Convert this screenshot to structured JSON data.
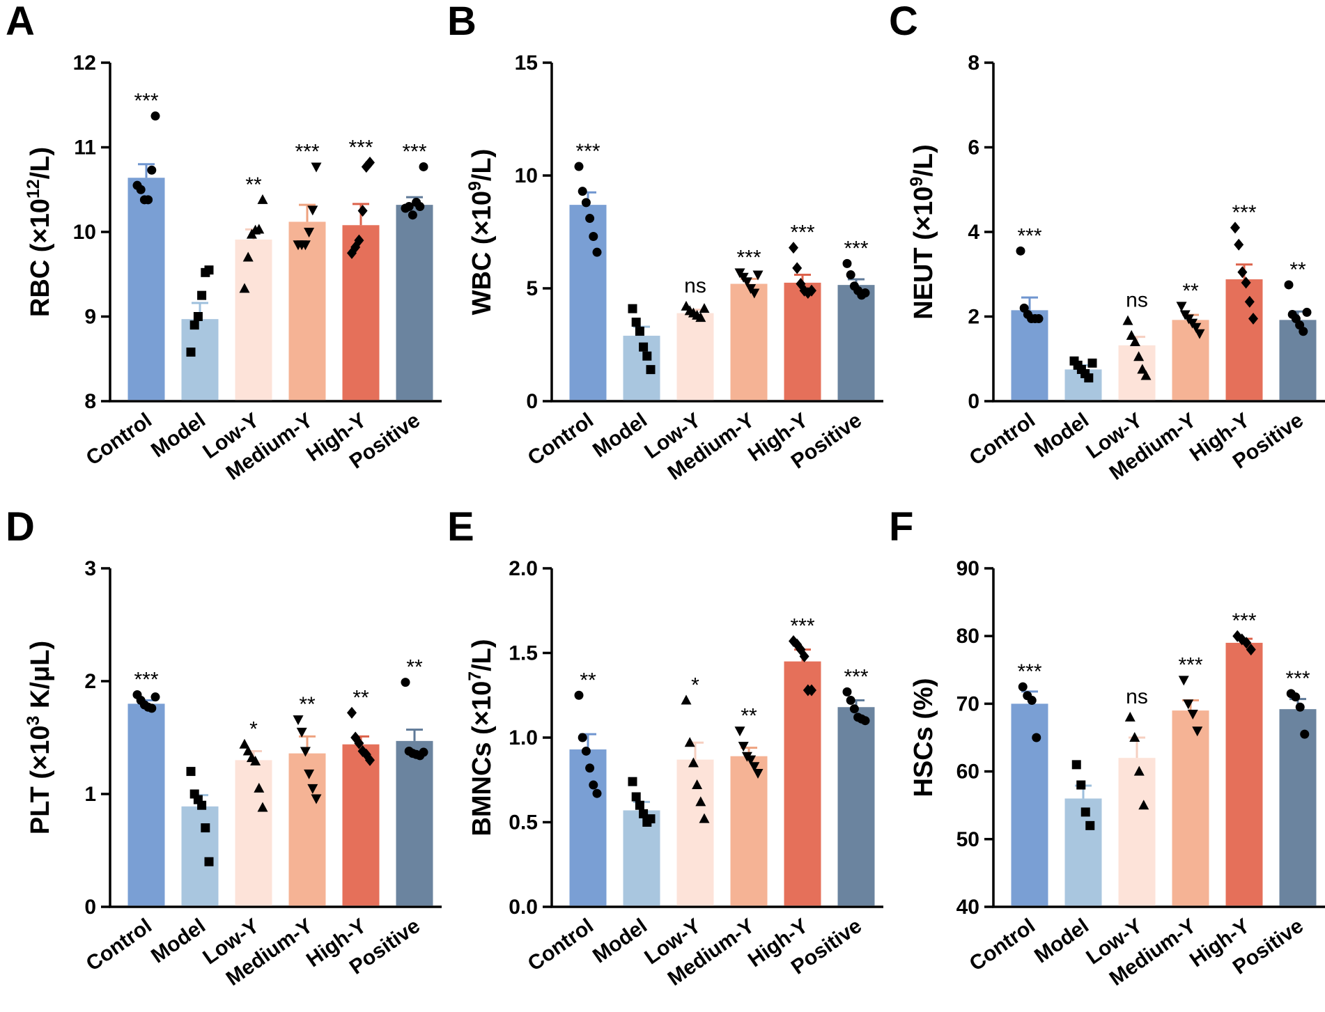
{
  "colors": {
    "Control": "#7a9fd4",
    "Control_err": "#6f95cf",
    "Model": "#a9c6df",
    "Model_err": "#9dbfdc",
    "Low-Y": "#fde3d9",
    "Low-Y_err": "#f6cfc0",
    "Medium-Y": "#f5b395",
    "Medium-Y_err": "#eea27f",
    "High-Y": "#e5705a",
    "High-Y_err": "#dc624b",
    "Positive": "#6b849f",
    "Positive_err": "#5f7a98"
  },
  "chart_data": [
    {
      "id": "A",
      "letter": "A",
      "type": "bar",
      "ylabel_main": "RBC (×10",
      "ylabel_sup": "12",
      "ylabel_tail": "/L)",
      "categories": [
        "Control",
        "Model",
        "Low-Y",
        "Medium-Y",
        "High-Y",
        "Positive"
      ],
      "ylim": [
        8,
        12
      ],
      "yticks": [
        "8",
        "9",
        "10",
        "11",
        "12"
      ],
      "means": [
        10.64,
        8.97,
        9.91,
        10.12,
        10.08,
        10.32
      ],
      "errors": [
        0.16,
        0.19,
        0.12,
        0.2,
        0.25,
        0.09
      ],
      "markers": [
        "circle",
        "square",
        "triangle-up",
        "triangle-down",
        "diamond",
        "circle"
      ],
      "points": [
        [
          10.55,
          10.5,
          10.38,
          10.38,
          10.73,
          11.37
        ],
        [
          8.58,
          8.9,
          9.0,
          9.25,
          9.52,
          9.55
        ],
        [
          9.33,
          9.7,
          9.97,
          10.02,
          10.03,
          10.38
        ],
        [
          9.85,
          9.85,
          9.85,
          10.0,
          10.26,
          10.77
        ],
        [
          9.75,
          9.82,
          9.9,
          10.25,
          10.77,
          10.82
        ],
        [
          10.28,
          10.3,
          10.2,
          10.35,
          10.3,
          10.77
        ]
      ],
      "significance": [
        "***",
        "",
        "**",
        "***",
        "***",
        "***"
      ]
    },
    {
      "id": "B",
      "letter": "B",
      "type": "bar",
      "ylabel_main": "WBC (×10",
      "ylabel_sup": "9",
      "ylabel_tail": "/L)",
      "categories": [
        "Control",
        "Model",
        "Low-Y",
        "Medium-Y",
        "High-Y",
        "Positive"
      ],
      "ylim": [
        0,
        15
      ],
      "yticks": [
        "0",
        "5",
        "10",
        "15"
      ],
      "means": [
        8.7,
        2.9,
        3.9,
        5.2,
        5.25,
        5.15
      ],
      "errors": [
        0.55,
        0.4,
        0.15,
        0.22,
        0.35,
        0.25
      ],
      "markers": [
        "circle",
        "square",
        "triangle-up",
        "triangle-down",
        "diamond",
        "circle"
      ],
      "points": [
        [
          10.4,
          9.3,
          8.8,
          8.1,
          7.3,
          6.6
        ],
        [
          4.1,
          3.5,
          3.1,
          2.4,
          2.0,
          1.4
        ],
        [
          4.2,
          4.0,
          3.9,
          3.8,
          3.7,
          4.1
        ],
        [
          5.7,
          5.5,
          5.3,
          5.0,
          4.8,
          5.6
        ],
        [
          6.8,
          5.9,
          5.2,
          4.9,
          4.8,
          4.9
        ],
        [
          6.1,
          5.6,
          5.1,
          4.9,
          4.7,
          4.8
        ]
      ],
      "significance": [
        "***",
        "",
        "ns",
        "***",
        "***",
        "***"
      ]
    },
    {
      "id": "C",
      "letter": "C",
      "type": "bar",
      "ylabel_main": "NEUT (×10",
      "ylabel_sup": "9",
      "ylabel_tail": "/L)",
      "categories": [
        "Control",
        "Model",
        "Low-Y",
        "Medium-Y",
        "High-Y",
        "Positive"
      ],
      "ylim": [
        0,
        8
      ],
      "yticks": [
        "0",
        "2",
        "4",
        "6",
        "8"
      ],
      "means": [
        2.15,
        0.75,
        1.32,
        1.92,
        2.88,
        1.92
      ],
      "errors": [
        0.3,
        0.1,
        0.2,
        0.12,
        0.35,
        0.2
      ],
      "markers": [
        "circle",
        "square",
        "triangle-up",
        "triangle-down",
        "diamond",
        "circle"
      ],
      "points": [
        [
          3.55,
          2.2,
          2.05,
          1.95,
          1.95,
          1.95
        ],
        [
          0.95,
          0.85,
          0.75,
          0.65,
          0.55,
          0.9
        ],
        [
          1.9,
          1.55,
          1.4,
          1.05,
          0.75,
          0.6
        ],
        [
          2.25,
          2.05,
          1.95,
          1.85,
          1.75,
          1.6
        ],
        [
          4.1,
          3.7,
          3.05,
          2.8,
          2.35,
          1.95
        ],
        [
          2.75,
          2.05,
          1.95,
          1.8,
          1.65,
          2.1
        ]
      ],
      "significance": [
        "***",
        "",
        "ns",
        "**",
        "***",
        "**"
      ]
    },
    {
      "id": "D",
      "letter": "D",
      "type": "bar",
      "ylabel_main": "PLT (×10",
      "ylabel_sup": "3",
      "ylabel_tail": " K/μL)",
      "categories": [
        "Control",
        "Model",
        "Low-Y",
        "Medium-Y",
        "High-Y",
        "Positive"
      ],
      "ylim": [
        0,
        3
      ],
      "yticks": [
        "0",
        "1",
        "2",
        "3"
      ],
      "means": [
        1.8,
        0.89,
        1.3,
        1.36,
        1.44,
        1.47
      ],
      "errors": [
        0.03,
        0.1,
        0.08,
        0.15,
        0.07,
        0.1
      ],
      "markers": [
        "circle",
        "square",
        "triangle-up",
        "triangle-down",
        "diamond",
        "circle"
      ],
      "points": [
        [
          1.88,
          1.83,
          1.79,
          1.77,
          1.76,
          1.86
        ],
        [
          1.2,
          1.0,
          0.95,
          0.9,
          0.7,
          0.4
        ],
        [
          1.44,
          1.38,
          1.32,
          1.29,
          1.05,
          0.88
        ],
        [
          1.66,
          1.55,
          1.38,
          1.18,
          1.05,
          0.96
        ],
        [
          1.72,
          1.5,
          1.45,
          1.38,
          1.35,
          1.3
        ],
        [
          1.99,
          1.38,
          1.36,
          1.35,
          1.34,
          1.37
        ]
      ],
      "significance": [
        "***",
        "",
        "*",
        "**",
        "**",
        "**"
      ]
    },
    {
      "id": "E",
      "letter": "E",
      "type": "bar",
      "ylabel_main": "BMNCs (×10",
      "ylabel_sup": "7",
      "ylabel_tail": "/L)",
      "categories": [
        "Control",
        "Model",
        "Low-Y",
        "Medium-Y",
        "High-Y",
        "Positive"
      ],
      "ylim": [
        0.0,
        2.0
      ],
      "yticks": [
        "0.0",
        "0.5",
        "1.0",
        "1.5",
        "2.0"
      ],
      "means": [
        0.93,
        0.57,
        0.87,
        0.89,
        1.45,
        1.18
      ],
      "errors": [
        0.09,
        0.05,
        0.1,
        0.05,
        0.07,
        0.04
      ],
      "markers": [
        "circle",
        "square",
        "triangle-up",
        "triangle-down",
        "diamond",
        "circle"
      ],
      "points": [
        [
          1.25,
          1.0,
          0.92,
          0.82,
          0.72,
          0.67
        ],
        [
          0.74,
          0.65,
          0.6,
          0.55,
          0.5,
          0.52
        ],
        [
          1.22,
          0.97,
          0.85,
          0.72,
          0.62,
          0.52
        ],
        [
          1.04,
          0.95,
          0.89,
          0.87,
          0.83,
          0.79
        ],
        [
          1.57,
          1.55,
          1.52,
          1.48,
          1.28,
          1.28
        ],
        [
          1.27,
          1.22,
          1.17,
          1.12,
          1.11,
          1.1
        ]
      ],
      "significance": [
        "**",
        "",
        "*",
        "**",
        "***",
        "***"
      ]
    },
    {
      "id": "F",
      "letter": "F",
      "type": "bar",
      "ylabel_main": "HSCs (%)",
      "ylabel_sup": "",
      "ylabel_tail": "",
      "categories": [
        "Control",
        "Model",
        "Low-Y",
        "Medium-Y",
        "High-Y",
        "Positive"
      ],
      "ylim": [
        40,
        90
      ],
      "yticks": [
        "40",
        "50",
        "60",
        "70",
        "80",
        "90"
      ],
      "means": [
        70.0,
        56.0,
        62.0,
        69.0,
        79.0,
        69.2
      ],
      "errors": [
        1.8,
        1.9,
        3.0,
        1.5,
        0.6,
        1.5
      ],
      "markers": [
        "circle",
        "square",
        "triangle-up",
        "triangle-down",
        "diamond",
        "circle"
      ],
      "points": [
        [
          72.5,
          71.2,
          70.5,
          65.0
        ],
        [
          61.0,
          58.0,
          54.0,
          52.0
        ],
        [
          68.0,
          65.0,
          60.0,
          55.0
        ],
        [
          73.5,
          70.0,
          68.5,
          66.0
        ],
        [
          80.0,
          79.5,
          79.0,
          78.0
        ],
        [
          71.5,
          71.0,
          69.5,
          65.5
        ]
      ],
      "significance": [
        "***",
        "",
        "ns",
        "***",
        "***",
        "***"
      ]
    }
  ]
}
